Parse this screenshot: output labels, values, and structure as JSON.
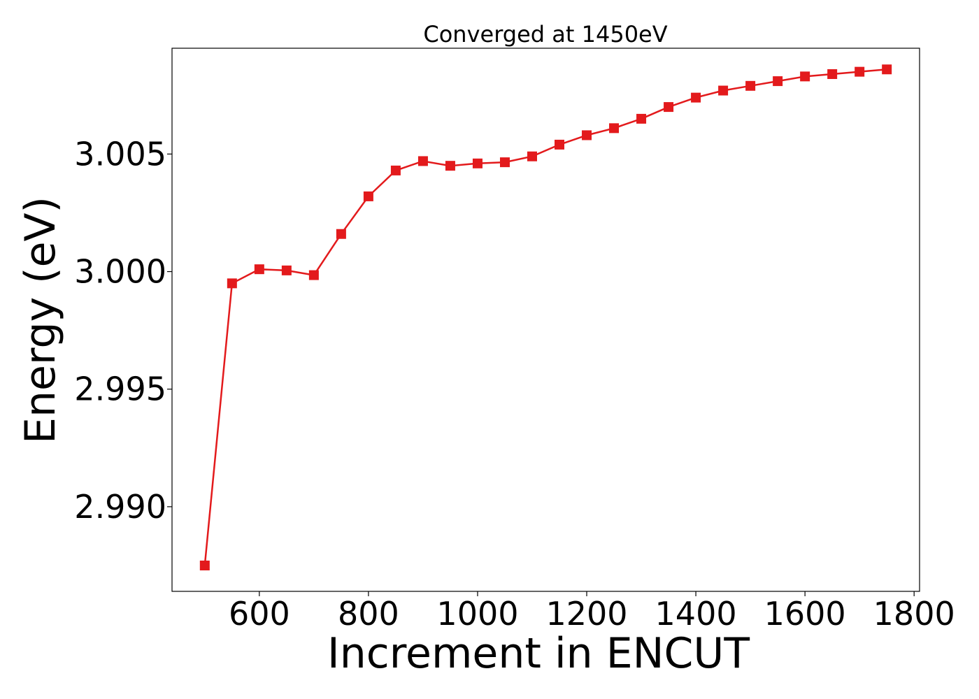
{
  "chart_data": {
    "type": "line",
    "title": "Converged at 1450eV",
    "xlabel": "Increment in ENCUT",
    "ylabel": "Energy (eV)",
    "xlim": [
      440,
      1810
    ],
    "ylim": [
      2.9864,
      3.0095
    ],
    "xticks": [
      600,
      800,
      1000,
      1200,
      1400,
      1600,
      1800
    ],
    "xtick_labels": [
      "600",
      "800",
      "1000",
      "1200",
      "1400",
      "1600",
      "1800"
    ],
    "yticks": [
      2.99,
      2.995,
      3.0,
      3.005
    ],
    "ytick_labels": [
      "2.990",
      "2.995",
      "3.000",
      "3.005"
    ],
    "grid": false,
    "series": [
      {
        "color": "#e31a1c",
        "marker": "square",
        "x": [
          500,
          550,
          600,
          650,
          700,
          750,
          800,
          850,
          900,
          950,
          1000,
          1050,
          1100,
          1150,
          1200,
          1250,
          1300,
          1350,
          1400,
          1450,
          1500,
          1550,
          1600,
          1650,
          1700,
          1750
        ],
        "values": [
          2.9875,
          2.9995,
          3.0001,
          3.00005,
          2.99985,
          3.0016,
          3.0032,
          3.0043,
          3.0047,
          3.0045,
          3.0046,
          3.00465,
          3.0049,
          3.0054,
          3.0058,
          3.0061,
          3.0065,
          3.007,
          3.0074,
          3.0077,
          3.0079,
          3.0081,
          3.0083,
          3.0084,
          3.0085,
          3.0086
        ]
      }
    ]
  }
}
